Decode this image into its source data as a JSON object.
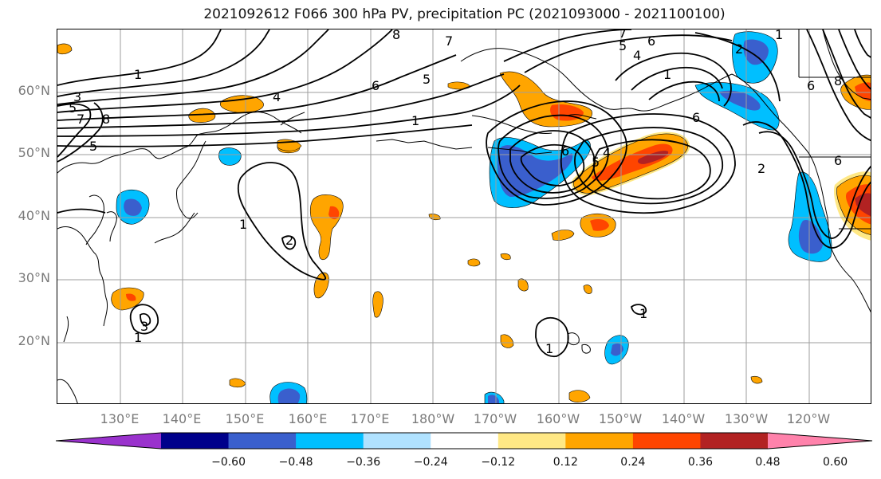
{
  "title": "2021092612 F066 300 hPa PV, precipitation PC (2021093000 - 2021100100)",
  "lat_labels": [
    "60°N",
    "50°N",
    "40°N",
    "30°N",
    "20°N"
  ],
  "lon_labels": [
    "130°E",
    "140°E",
    "150°E",
    "160°E",
    "170°E",
    "180°W",
    "170°W",
    "160°W",
    "150°W",
    "140°W",
    "130°W",
    "120°W"
  ],
  "colorbar": {
    "colors": [
      "#9a32cd",
      "#00008b",
      "#3a5fcd",
      "#00bfff",
      "#b0e2ff",
      "#ffffff",
      "#ffe885",
      "#ffa500",
      "#ff4500",
      "#b22222",
      "#ff82ab"
    ],
    "ticks": [
      "−0.60",
      "−0.48",
      "−0.36",
      "−0.24",
      "−0.12",
      "0.12",
      "0.24",
      "0.36",
      "0.48",
      "0.60"
    ]
  },
  "contour_labels": [
    "1",
    "3",
    "5",
    "7",
    "8",
    "5",
    "1",
    "4",
    "1",
    "8",
    "7",
    "6",
    "5",
    "1",
    "3",
    "7",
    "6",
    "5",
    "4",
    "6",
    "5",
    "4",
    "2",
    "6",
    "1",
    "2",
    "2",
    "1",
    "1",
    "6",
    "6",
    "8",
    "1"
  ],
  "colors": {
    "orange": "#ffa500",
    "red": "#ff4500",
    "dark_red": "#b22222",
    "yellow": "#ffe885",
    "blue": "#3a5fcd",
    "sky": "#00bfff",
    "light_blue": "#b0e2ff",
    "contour": "#000000",
    "grid": "#9e9e9e",
    "axis_label": "#7a7a7a"
  }
}
